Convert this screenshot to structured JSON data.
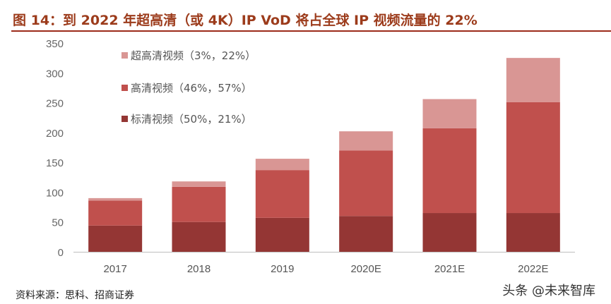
{
  "title": "图 14：到 2022 年超高清（或 4K）IP VoD 将占全球 IP 视频流量的 22%",
  "source": "资料来源：思科、招商证券",
  "watermark": "头条 @未来智库",
  "chart_data": {
    "type": "bar",
    "stacked": true,
    "title": "",
    "xlabel": "",
    "ylabel": "",
    "categories": [
      "2017",
      "2018",
      "2019",
      "2020E",
      "2021E",
      "2022E"
    ],
    "ylim": [
      0,
      350
    ],
    "yticks": [
      "0",
      "50",
      "100",
      "150",
      "200",
      "250",
      "300",
      "350"
    ],
    "grid": false,
    "legend": "top-left",
    "series": [
      {
        "name": "标清视频（50%，21%）",
        "color": "#943634",
        "values": [
          44,
          50,
          57,
          60,
          65,
          65
        ]
      },
      {
        "name": "高清视频（46%，57%）",
        "color": "#C0504D",
        "values": [
          42,
          59,
          80,
          110,
          142,
          186
        ]
      },
      {
        "name": "超高清视频（3%，22%）",
        "color": "#D99694",
        "values": [
          4,
          9,
          19,
          32,
          49,
          74
        ]
      }
    ]
  }
}
